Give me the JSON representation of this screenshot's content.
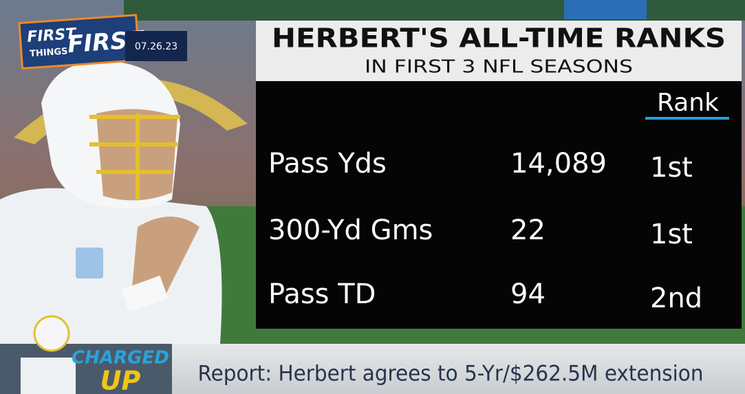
{
  "logo": {
    "line1": "FIRST",
    "line2": "THINGS",
    "line3": "FIRST"
  },
  "date": "07.26.23",
  "graphic": {
    "title": "HERBERT'S ALL-TIME RANKS",
    "subtitle": "IN FIRST 3 NFL SEASONS",
    "table": {
      "header": "Rank",
      "rows": [
        [
          "Pass Yds",
          "14,089",
          "1st"
        ],
        [
          "300-Yd Gms",
          "22",
          "1st"
        ],
        [
          "Pass TD",
          "94",
          "2nd"
        ]
      ]
    }
  },
  "ticker": {
    "badge": [
      "CHARGED",
      "UP"
    ],
    "headline": "Report: Herbert agrees to 5-Yr/$262.5M extension"
  }
}
